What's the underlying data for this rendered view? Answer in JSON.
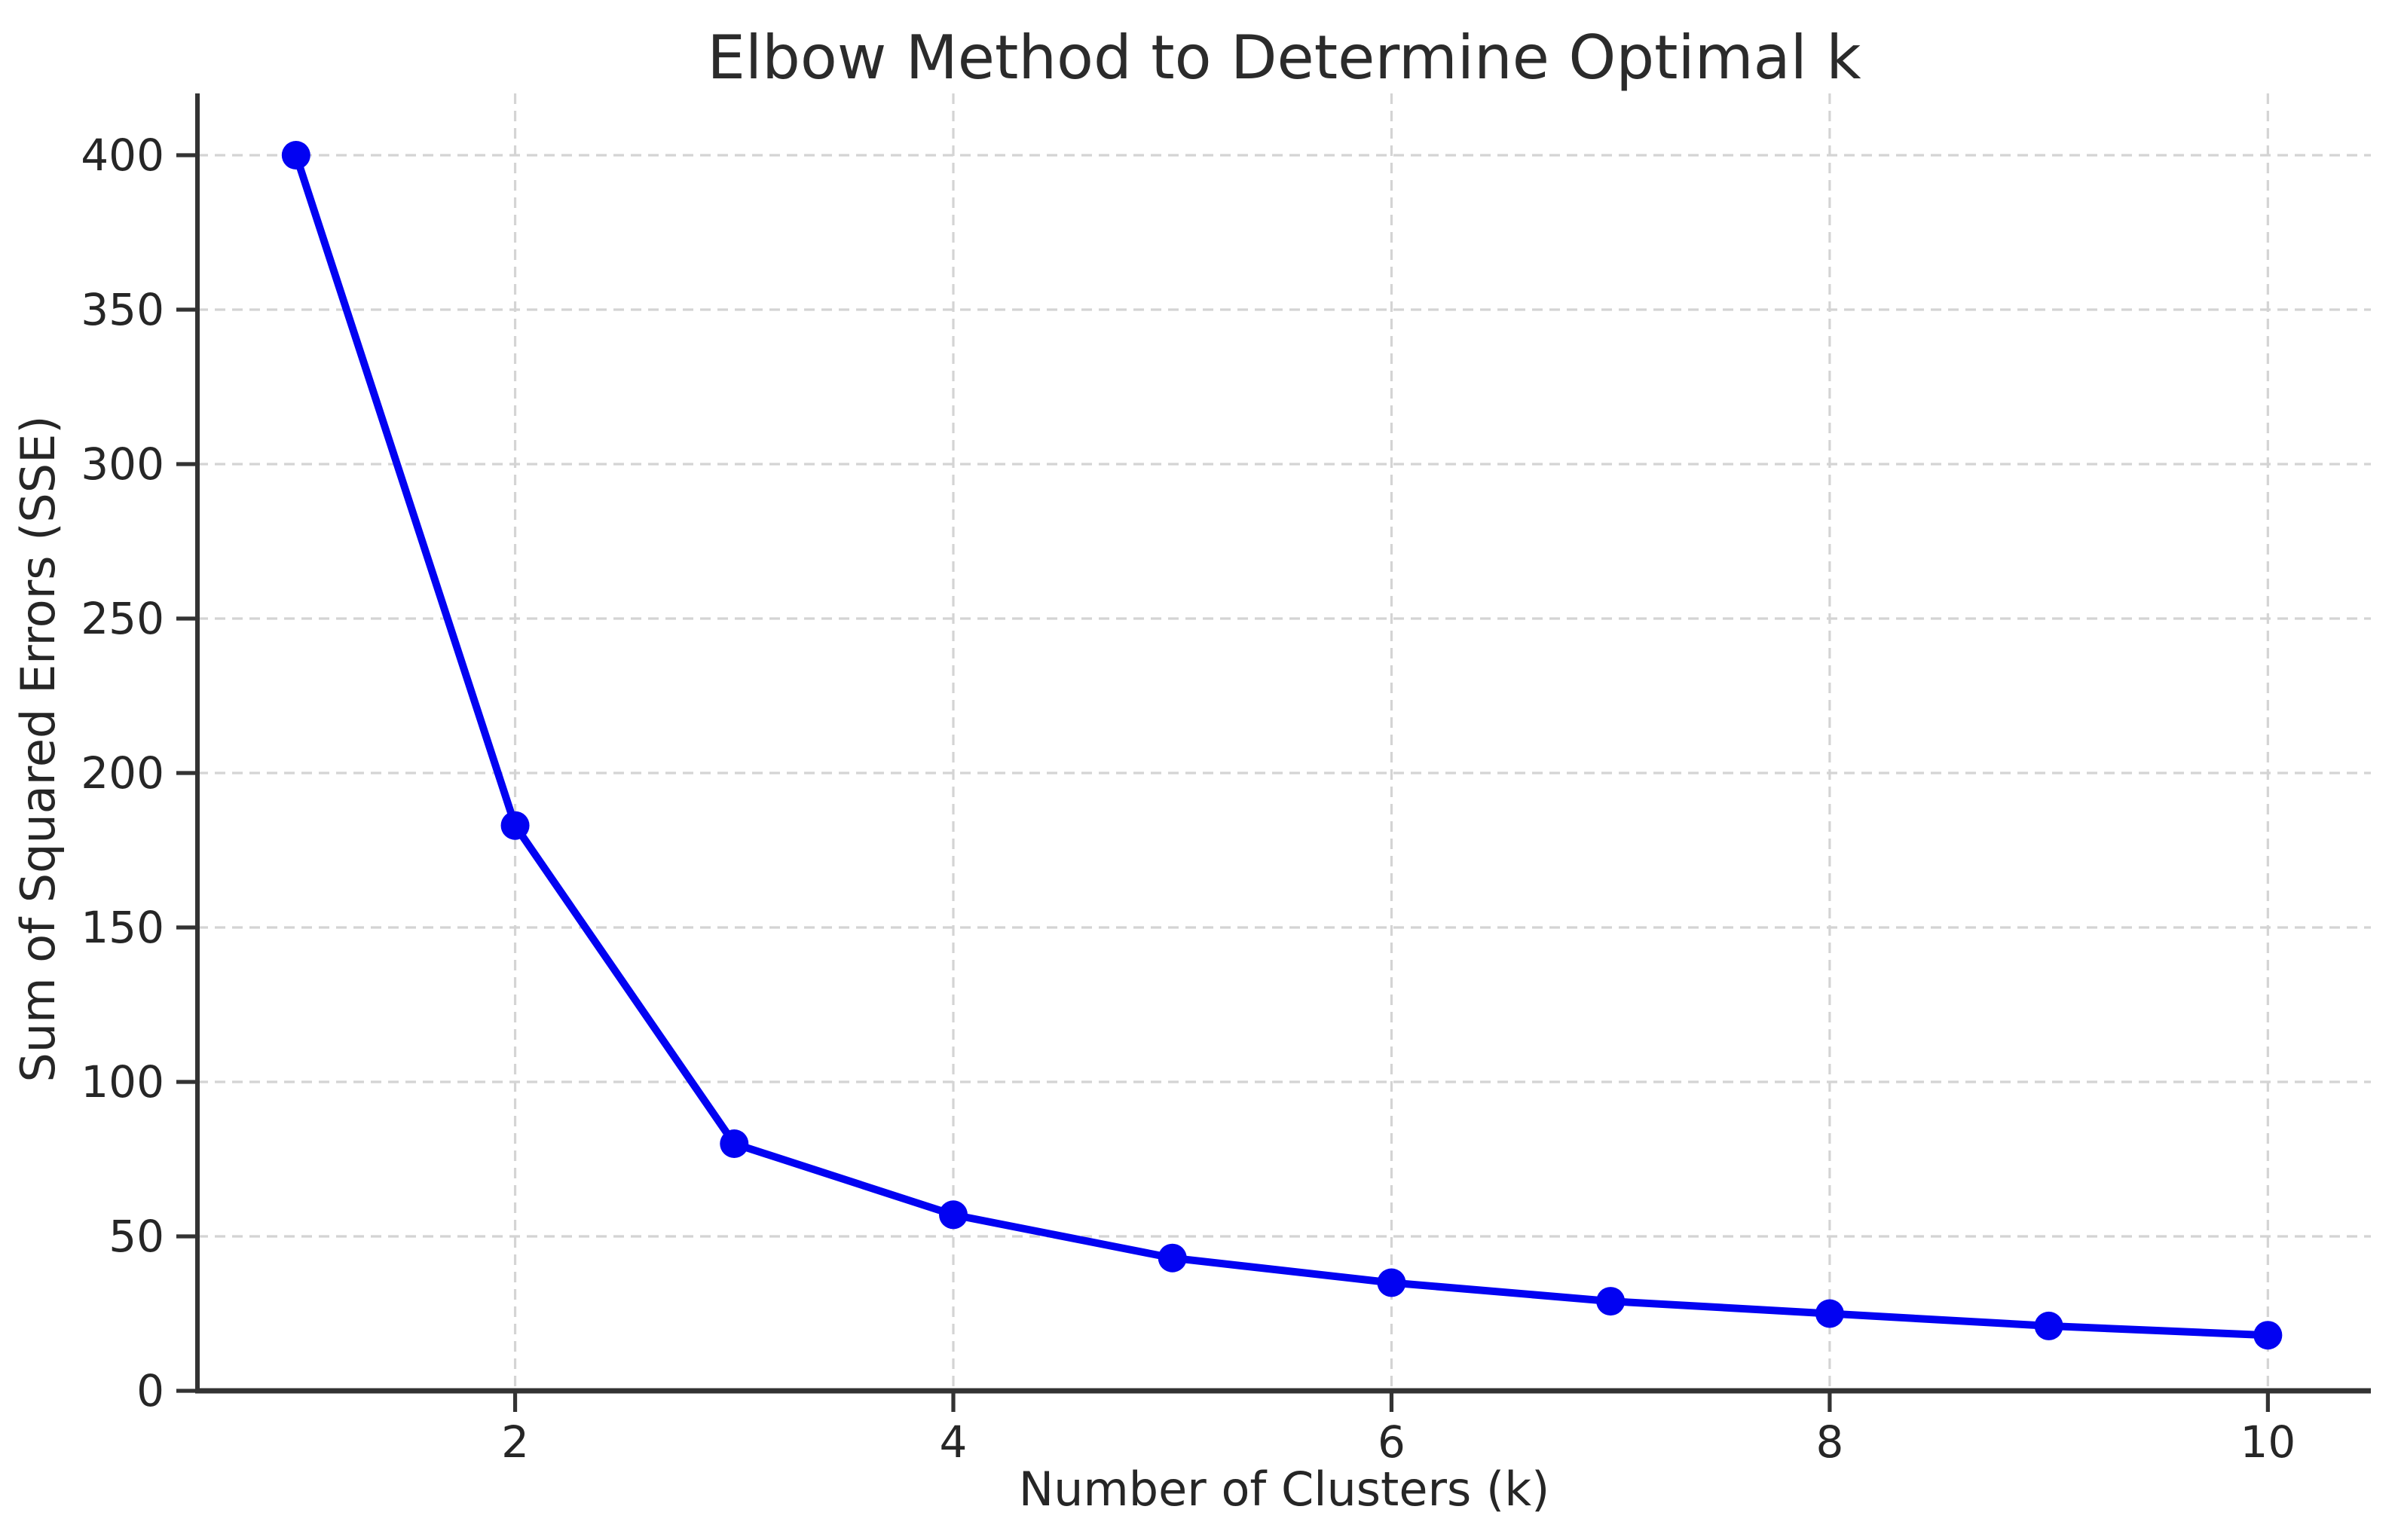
{
  "chart_data": {
    "type": "line",
    "title": "Elbow Method to Determine Optimal k",
    "xlabel": "Number of Clusters (k)",
    "ylabel": "Sum of Squared Errors (SSE)",
    "series": [
      {
        "name": "SSE",
        "x": [
          1,
          2,
          3,
          4,
          5,
          6,
          7,
          8,
          9,
          10
        ],
        "values": [
          400,
          183,
          80,
          57,
          43,
          35,
          29,
          25,
          21,
          18
        ]
      }
    ],
    "xticks": [
      2,
      4,
      6,
      8,
      10
    ],
    "yticks": [
      0,
      50,
      100,
      150,
      200,
      250,
      300,
      350,
      400
    ],
    "xlim": [
      0.55,
      10.47
    ],
    "ylim": [
      0,
      420
    ],
    "grid": "on",
    "grid_style": "dashed",
    "legend": "none",
    "line_color": "#0202f2",
    "marker": "circle",
    "marker_color": "#0202f2",
    "grid_color": "#d4d4d4",
    "spine_color": "#333333",
    "tick_color": "#333333",
    "text_color": "#262626",
    "background_color": "#ffffff"
  }
}
